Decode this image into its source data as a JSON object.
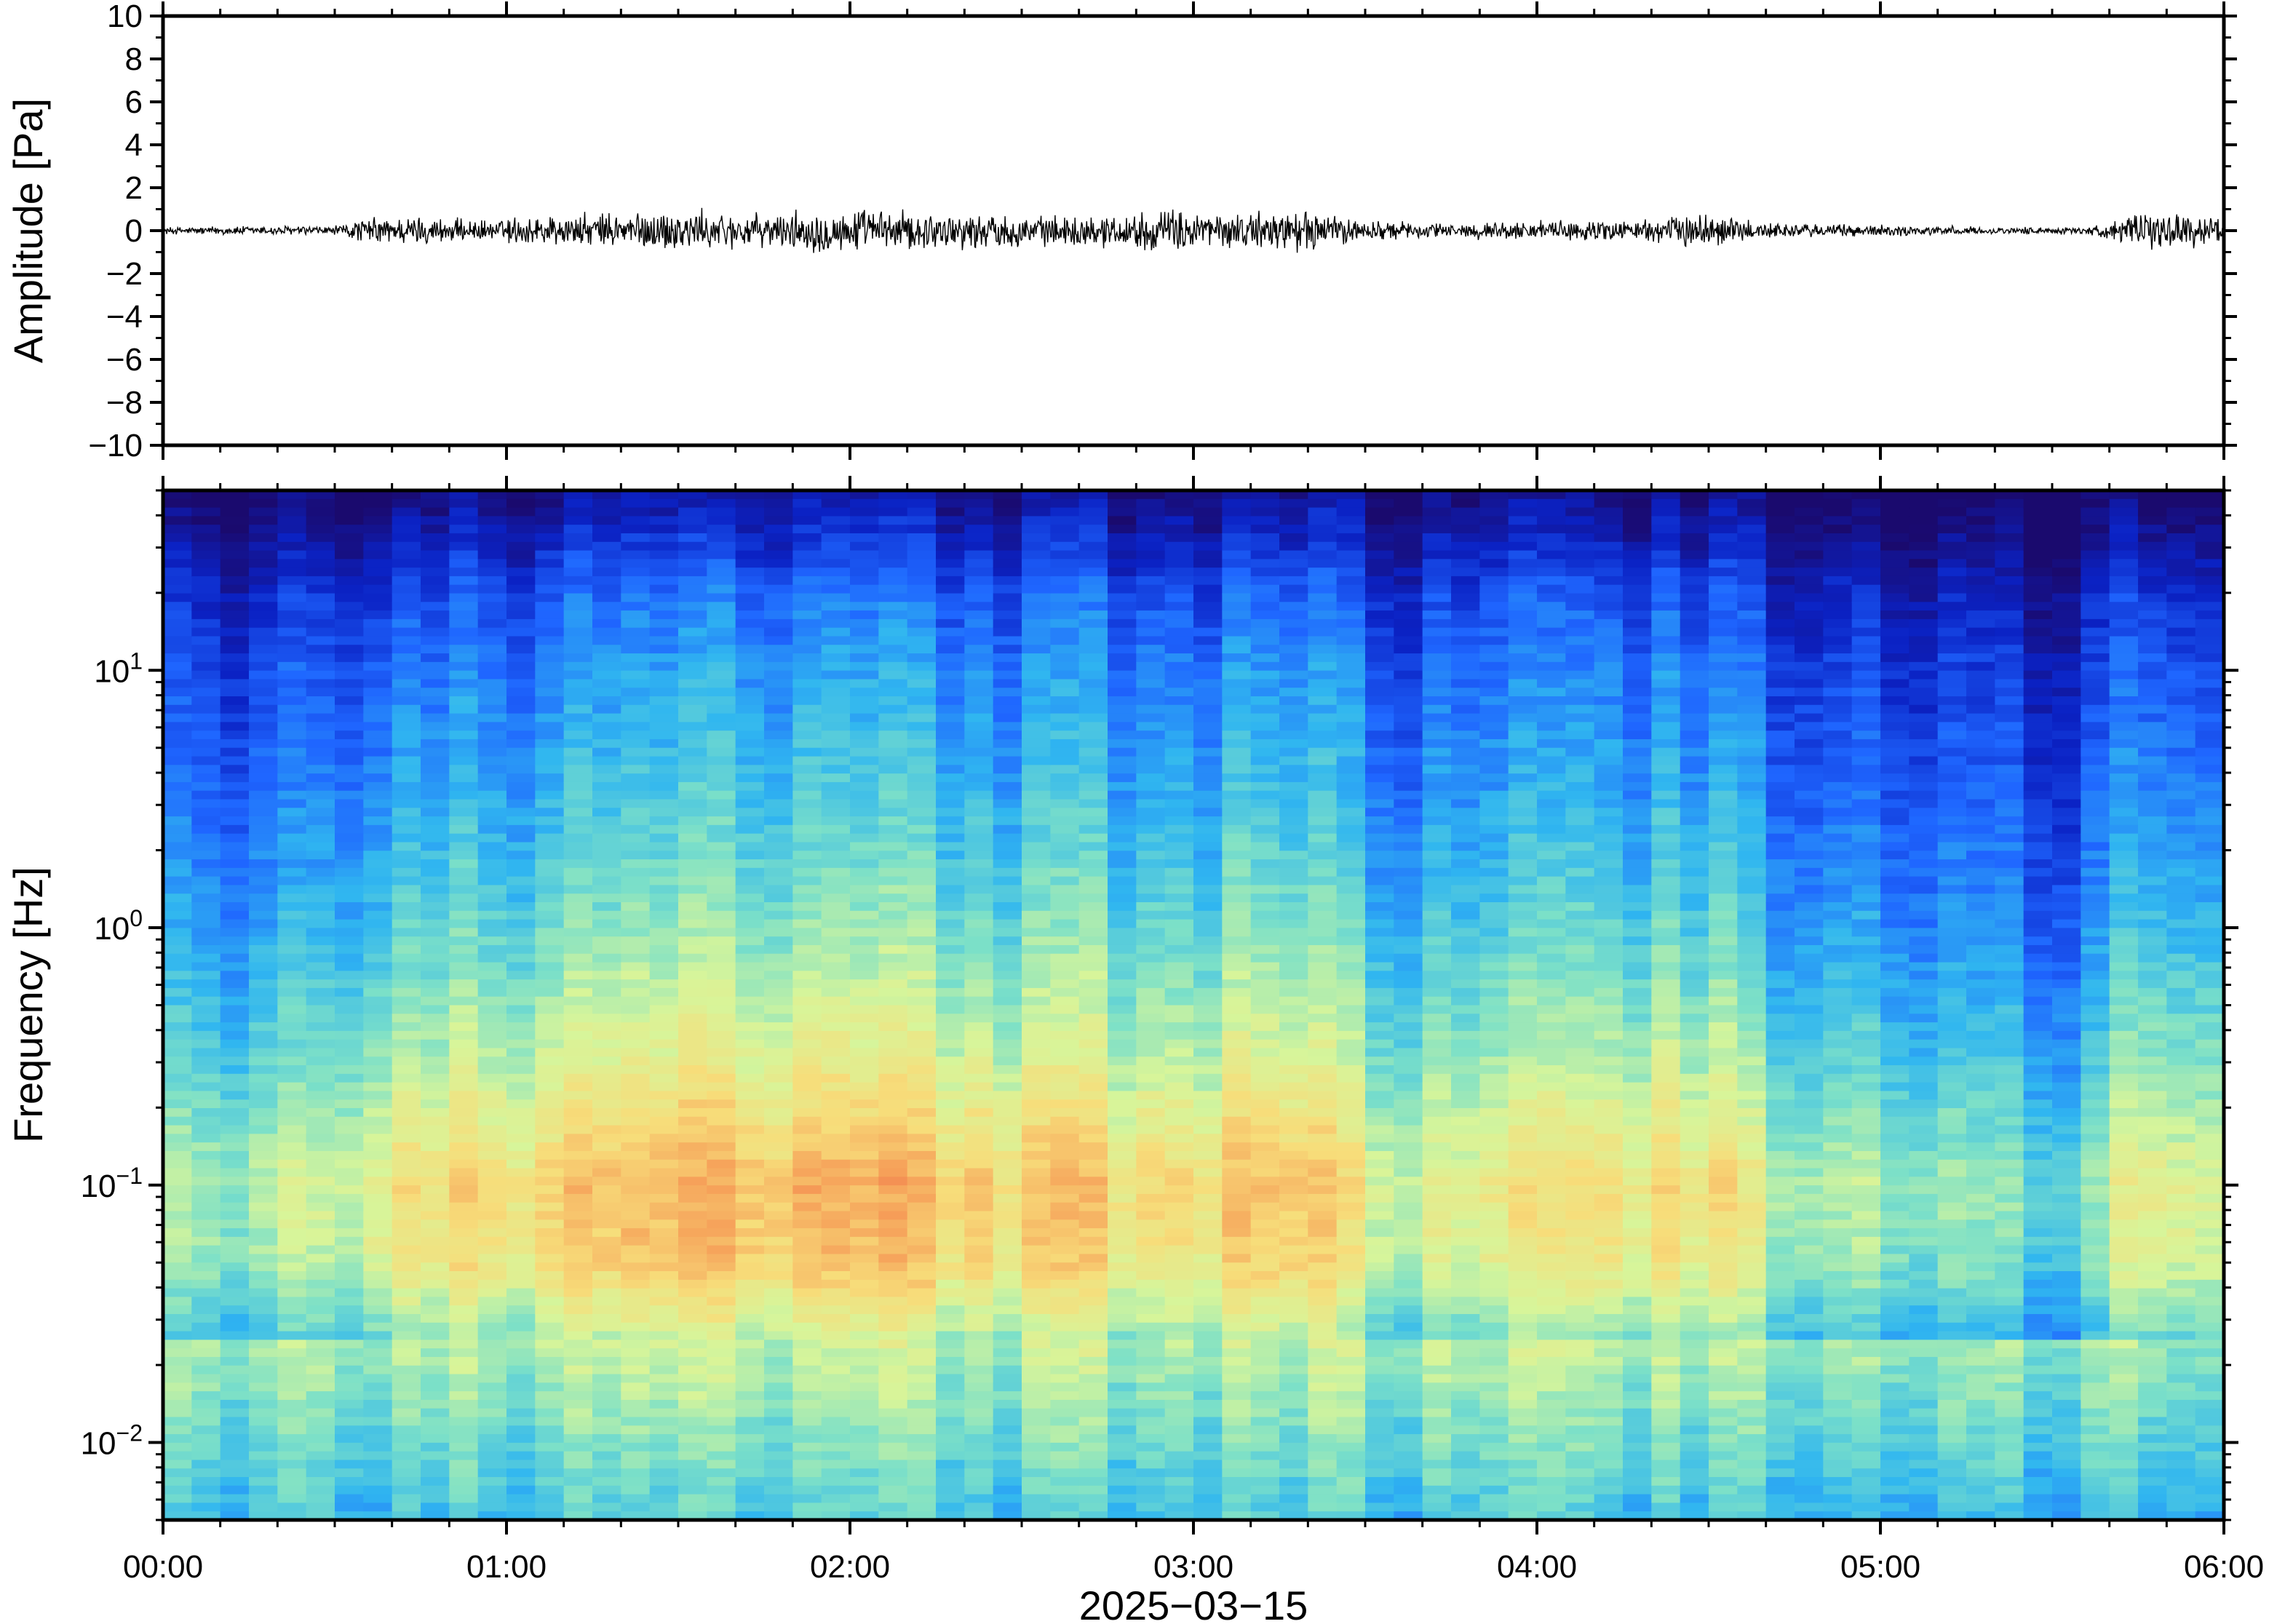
{
  "chart_data": [
    {
      "type": "line",
      "title": "",
      "ylabel": "Amplitude [Pa]",
      "ylim": [
        -10,
        10
      ],
      "yticks": [
        10,
        8,
        6,
        4,
        2,
        0,
        -2,
        -4,
        -6,
        -8,
        -10
      ],
      "ytick_labels": [
        "10",
        "8",
        "6",
        "4",
        "2",
        "0",
        "−2",
        "−4",
        "−6",
        "−8",
        "−10"
      ],
      "xlim": [
        "00:00",
        "06:00"
      ],
      "series": [
        {
          "color": "#000000",
          "envelope_time_hours": [
            0.0,
            0.25,
            0.5,
            0.6,
            0.75,
            0.95,
            1.05,
            1.25,
            1.5,
            1.75,
            1.9,
            2.1,
            2.3,
            2.6,
            2.8,
            2.95,
            3.1,
            3.3,
            3.5,
            3.7,
            4.0,
            4.3,
            4.5,
            4.7,
            5.0,
            5.3,
            5.6,
            5.8,
            6.0
          ],
          "envelope_amplitude_pa": [
            0.15,
            0.2,
            0.2,
            0.55,
            0.6,
            0.4,
            0.65,
            0.7,
            0.9,
            0.65,
            0.9,
            0.85,
            0.75,
            0.6,
            0.7,
            0.9,
            0.7,
            0.9,
            0.45,
            0.3,
            0.4,
            0.45,
            0.75,
            0.3,
            0.25,
            0.15,
            0.15,
            0.8,
            0.6
          ]
        }
      ]
    },
    {
      "type": "heatmap",
      "title": "",
      "ylabel": "Frequency [Hz]",
      "xlabel": "2025−03−15",
      "yscale": "log",
      "ylim_hz": [
        0.005,
        50
      ],
      "yticks_hz": [
        10,
        1,
        0.1,
        0.01
      ],
      "ytick_labels": [
        {
          "base": "10",
          "exp": "1"
        },
        {
          "base": "10",
          "exp": "0"
        },
        {
          "base": "10",
          "exp": "−1"
        },
        {
          "base": "10",
          "exp": "−2"
        }
      ],
      "xticks": [
        "00:00",
        "01:00",
        "02:00",
        "03:00",
        "04:00",
        "05:00",
        "06:00"
      ],
      "colormap": "rainbow (dark blue = low power, red = high power)",
      "colormap_stops": [
        "#1a0a6e",
        "#0b22c4",
        "#1f66ff",
        "#30b6f0",
        "#7ce0c8",
        "#d7f59a",
        "#f7dd7a",
        "#f6a25a",
        "#ee4e3c"
      ],
      "power_profile_by_frequency": [
        {
          "freq_hz": 50,
          "level": 0.05
        },
        {
          "freq_hz": 20,
          "level": 0.25
        },
        {
          "freq_hz": 10,
          "level": 0.33
        },
        {
          "freq_hz": 3,
          "level": 0.42
        },
        {
          "freq_hz": 1,
          "level": 0.52
        },
        {
          "freq_hz": 0.3,
          "level": 0.66
        },
        {
          "freq_hz": 0.1,
          "level": 0.82
        },
        {
          "freq_hz": 0.05,
          "level": 0.78
        },
        {
          "freq_hz": 0.025,
          "level": 0.6
        },
        {
          "freq_hz": 0.01,
          "level": 0.5
        },
        {
          "freq_hz": 0.005,
          "level": 0.42
        }
      ],
      "activity_by_time": {
        "time_hours": [
          0.0,
          0.5,
          0.6,
          1.0,
          1.5,
          2.0,
          2.5,
          3.0,
          3.3,
          3.5,
          3.7,
          4.0,
          4.5,
          4.7,
          5.0,
          5.4,
          5.6,
          5.75,
          6.0
        ],
        "relative_level": [
          0.55,
          0.65,
          0.85,
          0.9,
          1.0,
          1.0,
          0.95,
          0.9,
          1.0,
          0.75,
          0.7,
          0.8,
          0.9,
          0.65,
          0.6,
          0.5,
          0.45,
          0.85,
          0.8
        ]
      }
    }
  ]
}
